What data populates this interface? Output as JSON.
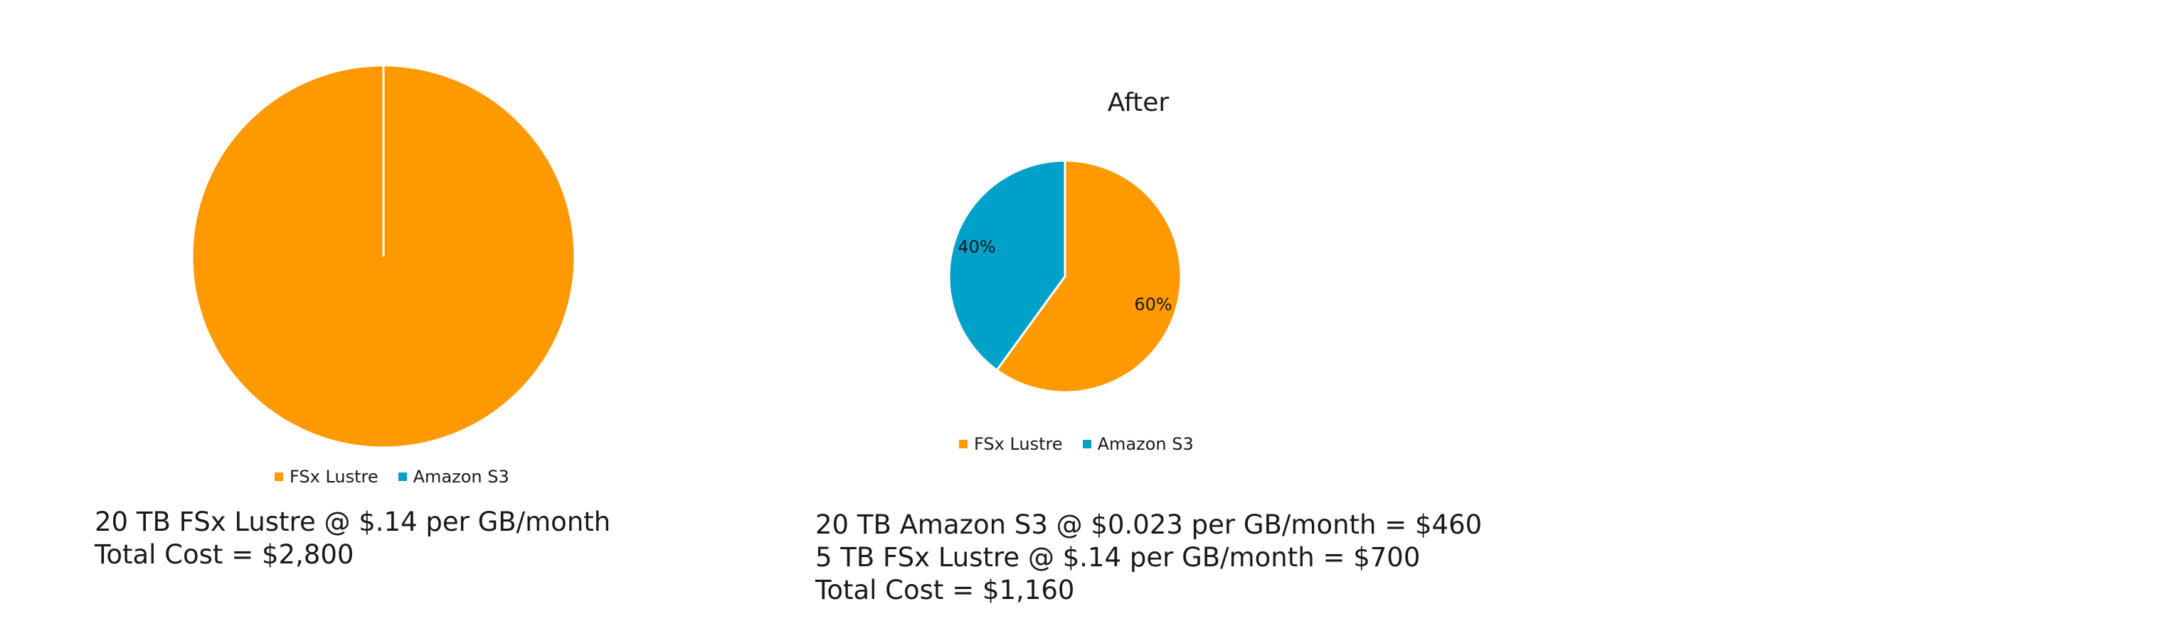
{
  "colors": {
    "fsx": "#ff9900",
    "s3": "#00a1c9"
  },
  "chart_data": [
    {
      "type": "pie",
      "title": "",
      "categories": [
        "FSx Lustre",
        "Amazon S3"
      ],
      "values": [
        100,
        0
      ],
      "colors": [
        "#ff9900",
        "#00a1c9"
      ],
      "legend": "bottom",
      "data_labels": []
    },
    {
      "type": "pie",
      "title": "After",
      "categories": [
        "FSx Lustre",
        "Amazon S3"
      ],
      "values": [
        60,
        40
      ],
      "colors": [
        "#ff9900",
        "#00a1c9"
      ],
      "legend": "bottom",
      "data_labels": [
        "60%",
        "40%"
      ]
    }
  ],
  "before": {
    "legend": [
      "FSx Lustre",
      "Amazon S3"
    ],
    "caption_lines": [
      "20 TB FSx Lustre @ $.14 per GB/month",
      "Total Cost = $2,800"
    ]
  },
  "after": {
    "title": "After",
    "legend": [
      "FSx Lustre",
      "Amazon S3"
    ],
    "caption_lines": [
      "20 TB Amazon S3 @ $0.023 per GB/month = $460",
      "5 TB FSx Lustre @ $.14 per GB/month = $700",
      "Total Cost = $1,160"
    ]
  }
}
